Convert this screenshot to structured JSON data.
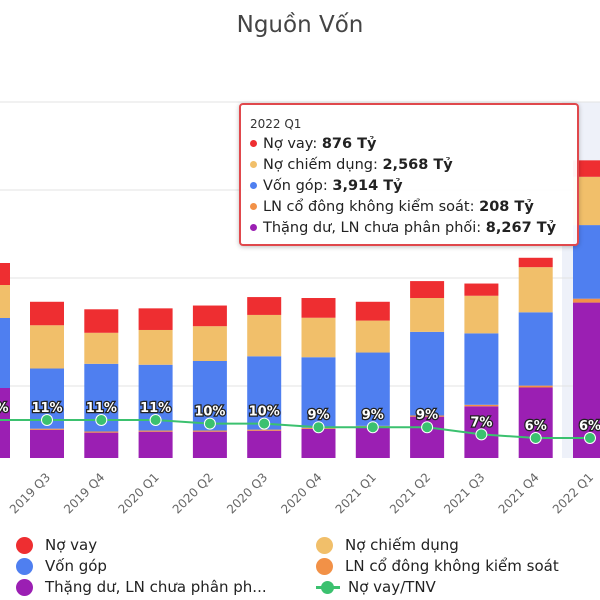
{
  "title": "Nguồn Vốn",
  "colors": {
    "no_vay": "#ee2e31",
    "no_chiem_dung": "#f1bf6a",
    "von_gop": "#4f7ff0",
    "ln_co_dong": "#f29147",
    "thang_du": "#9b1fb3",
    "ratio_line": "#3bc16f",
    "highlight_bg": "#eef1f9"
  },
  "chart_data": {
    "type": "bar",
    "categories": [
      "2019 Q3",
      "2019 Q4",
      "2020 Q1",
      "2020 Q2",
      "2020 Q3",
      "2020 Q4",
      "2021 Q1",
      "2021 Q2",
      "2021 Q3",
      "2021 Q4",
      "2022 Q1"
    ],
    "series": [
      {
        "name": "Nợ vay",
        "values": [
          null,
          null,
          null,
          null,
          null,
          null,
          null,
          null,
          null,
          null,
          876
        ]
      },
      {
        "name": "Nợ chiếm dụng",
        "values": [
          null,
          null,
          null,
          null,
          null,
          null,
          null,
          null,
          null,
          null,
          2568
        ]
      },
      {
        "name": "Vốn góp",
        "values": [
          null,
          null,
          null,
          null,
          null,
          null,
          null,
          null,
          null,
          null,
          3914
        ]
      },
      {
        "name": "LN cổ đông không kiểm soát",
        "values": [
          null,
          null,
          null,
          null,
          null,
          null,
          null,
          null,
          null,
          null,
          208
        ]
      },
      {
        "name": "Thặng dư, LN chưa phân phối",
        "values": [
          null,
          null,
          null,
          null,
          null,
          null,
          null,
          null,
          null,
          null,
          8267
        ]
      },
      {
        "name": "Nợ vay/TNV",
        "type": "line",
        "values": [
          11,
          11,
          11,
          10,
          10,
          9,
          9,
          9,
          7,
          6,
          6
        ],
        "unit": "%"
      }
    ],
    "data_labels": [
      "11%",
      "11%",
      "11%",
      "10%",
      "10%",
      "9%",
      "9%",
      "9%",
      "7%",
      "6%",
      "6%"
    ],
    "partial_left_label": "%",
    "highlighted_category": "2022 Q1"
  },
  "tooltip": {
    "header": "2022 Q1",
    "rows": [
      {
        "label": "Nợ vay: ",
        "value": "876 Tỷ",
        "color_key": "no_vay"
      },
      {
        "label": "Nợ chiếm dụng: ",
        "value": "2,568 Tỷ",
        "color_key": "no_chiem_dung"
      },
      {
        "label": "Vốn góp: ",
        "value": "3,914 Tỷ",
        "color_key": "von_gop"
      },
      {
        "label": "LN cổ đông không kiểm soát: ",
        "value": "208 Tỷ",
        "color_key": "ln_co_dong"
      },
      {
        "label": "Thặng dư, LN chưa phân phối: ",
        "value": "8,267 Tỷ",
        "color_key": "thang_du"
      }
    ]
  },
  "legend": [
    {
      "label": "Nợ vay",
      "color_key": "no_vay",
      "kind": "dot"
    },
    {
      "label": "Nợ chiếm dụng",
      "color_key": "no_chiem_dung",
      "kind": "dot"
    },
    {
      "label": "Vốn góp",
      "color_key": "von_gop",
      "kind": "dot"
    },
    {
      "label": "LN cổ đông không kiểm soát",
      "color_key": "ln_co_dong",
      "kind": "dot"
    },
    {
      "label": "Thặng dư, LN chưa phân ph...",
      "color_key": "thang_du",
      "kind": "dot"
    },
    {
      "label": "Nợ vay/TNV",
      "color_key": "ratio_line",
      "kind": "line"
    }
  ]
}
